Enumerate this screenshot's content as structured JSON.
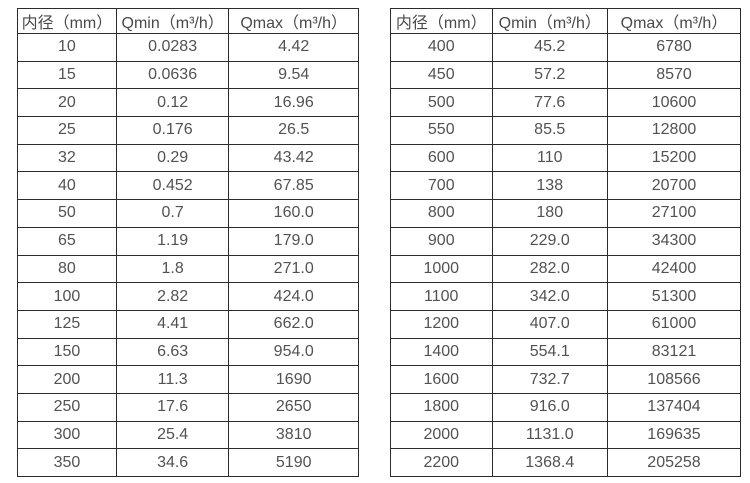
{
  "colors": {
    "background": "#ffffff",
    "border": "#2b2b2b",
    "text": "#4f4f4f"
  },
  "chart_data": [
    {
      "type": "table",
      "title": "",
      "columns": [
        "内径（mm）",
        "Qmin（m³/h）",
        "Qmax（m³/h）"
      ],
      "rows": [
        [
          "10",
          "0.0283",
          "4.42"
        ],
        [
          "15",
          "0.0636",
          "9.54"
        ],
        [
          "20",
          "0.12",
          "16.96"
        ],
        [
          "25",
          "0.176",
          "26.5"
        ],
        [
          "32",
          "0.29",
          "43.42"
        ],
        [
          "40",
          "0.452",
          "67.85"
        ],
        [
          "50",
          "0.7",
          "160.0"
        ],
        [
          "65",
          "1.19",
          "179.0"
        ],
        [
          "80",
          "1.8",
          "271.0"
        ],
        [
          "100",
          "2.82",
          "424.0"
        ],
        [
          "125",
          "4.41",
          "662.0"
        ],
        [
          "150",
          "6.63",
          "954.0"
        ],
        [
          "200",
          "11.3",
          "1690"
        ],
        [
          "250",
          "17.6",
          "2650"
        ],
        [
          "300",
          "25.4",
          "3810"
        ],
        [
          "350",
          "34.6",
          "5190"
        ]
      ]
    },
    {
      "type": "table",
      "title": "",
      "columns": [
        "内径（mm）",
        "Qmin（m³/h）",
        "Qmax（m³/h）"
      ],
      "rows": [
        [
          "400",
          "45.2",
          "6780"
        ],
        [
          "450",
          "57.2",
          "8570"
        ],
        [
          "500",
          "77.6",
          "10600"
        ],
        [
          "550",
          "85.5",
          "12800"
        ],
        [
          "600",
          "110",
          "15200"
        ],
        [
          "700",
          "138",
          "20700"
        ],
        [
          "800",
          "180",
          "27100"
        ],
        [
          "900",
          "229.0",
          "34300"
        ],
        [
          "1000",
          "282.0",
          "42400"
        ],
        [
          "1100",
          "342.0",
          "51300"
        ],
        [
          "1200",
          "407.0",
          "61000"
        ],
        [
          "1400",
          "554.1",
          "83121"
        ],
        [
          "1600",
          "732.7",
          "108566"
        ],
        [
          "1800",
          "916.0",
          "137404"
        ],
        [
          "2000",
          "1131.0",
          "169635"
        ],
        [
          "2200",
          "1368.4",
          "205258"
        ]
      ]
    }
  ]
}
